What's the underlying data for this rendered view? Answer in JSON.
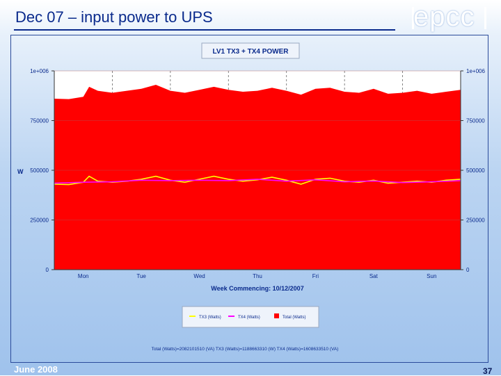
{
  "slide": {
    "title": "Dec 07 – input power to UPS",
    "logo_text": "epcc",
    "footer_date": "June 2008",
    "page_number": "37"
  },
  "colors": {
    "total_fill": "#ff0000",
    "tx3_line": "#ffff00",
    "tx4_line": "#ff00ff",
    "title_text": "#0a2a8c"
  },
  "chart_data": {
    "type": "area",
    "title": "LV1 TX3 + TX4 POWER",
    "xlabel": "Week Commencing: 10/12/2007",
    "ylabel": "W",
    "ylim": [
      0,
      1000000
    ],
    "y_ticks_left": [
      "0",
      "250000",
      "500000",
      "750000",
      "1e+006"
    ],
    "y_ticks_right": [
      "0",
      "250000",
      "500000",
      "750000",
      "1e+006"
    ],
    "categories": [
      "Mon",
      "Tue",
      "Wed",
      "Thu",
      "Fri",
      "Sat",
      "Sun"
    ],
    "grid": true,
    "legend_position": "bottom",
    "series": [
      {
        "name": "TX3 (Watts)",
        "kind": "line",
        "color": "#ffff00",
        "x": [
          0,
          0.25,
          0.5,
          0.6,
          0.75,
          1,
          1.25,
          1.5,
          1.75,
          2,
          2.25,
          2.5,
          2.75,
          3,
          3.25,
          3.5,
          3.75,
          4,
          4.25,
          4.5,
          4.75,
          5,
          5.25,
          5.5,
          5.75,
          6,
          6.25,
          6.5,
          6.75,
          7
        ],
        "values": [
          430000,
          428000,
          440000,
          470000,
          445000,
          440000,
          445000,
          455000,
          470000,
          450000,
          440000,
          455000,
          470000,
          455000,
          445000,
          452000,
          465000,
          450000,
          430000,
          455000,
          460000,
          445000,
          440000,
          450000,
          435000,
          440000,
          445000,
          440000,
          450000,
          455000
        ]
      },
      {
        "name": "TX4 (Watts)",
        "kind": "line",
        "color": "#ff00ff",
        "x": [
          0,
          0.5,
          1,
          1.5,
          2,
          2.5,
          3,
          3.5,
          4,
          4.5,
          5,
          5.5,
          6,
          6.5,
          7
        ],
        "values": [
          435000,
          440000,
          442000,
          450000,
          448000,
          450000,
          448000,
          455000,
          445000,
          452000,
          442000,
          446000,
          438000,
          442000,
          448000
        ]
      },
      {
        "name": "Total (Watts)",
        "kind": "area",
        "color": "#ff0000",
        "x": [
          0,
          0.25,
          0.5,
          0.6,
          0.75,
          1,
          1.25,
          1.5,
          1.75,
          2,
          2.25,
          2.5,
          2.75,
          3,
          3.25,
          3.5,
          3.75,
          4,
          4.25,
          4.5,
          4.75,
          5,
          5.25,
          5.5,
          5.75,
          6,
          6.25,
          6.5,
          6.75,
          7
        ],
        "values": [
          860000,
          858000,
          870000,
          920000,
          900000,
          890000,
          900000,
          910000,
          930000,
          900000,
          890000,
          905000,
          920000,
          905000,
          895000,
          900000,
          915000,
          900000,
          880000,
          910000,
          915000,
          895000,
          890000,
          910000,
          885000,
          890000,
          900000,
          885000,
          895000,
          905000
        ]
      }
    ],
    "footnote": "Total (Watts)=2082101510 (VA)    TX3 (Watts)=1188663310 (W)    TX4 (Watts)=1608633510 (VA)"
  }
}
